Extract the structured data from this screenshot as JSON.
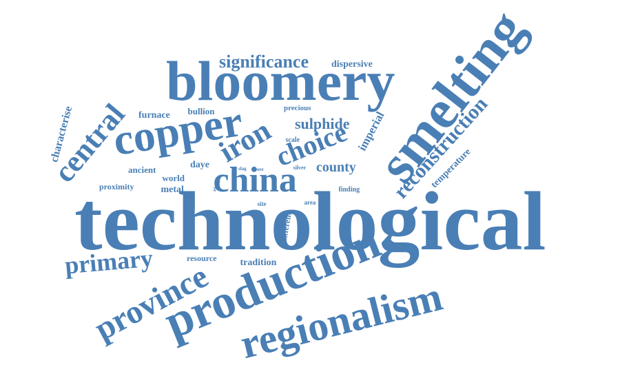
{
  "color": "#4a7fb5",
  "words": [
    {
      "text": "technological",
      "weight": 1.0
    },
    {
      "text": "smelting",
      "weight": 0.72
    },
    {
      "text": "production",
      "weight": 0.7
    },
    {
      "text": "bloomery",
      "weight": 0.68
    },
    {
      "text": "regionalism",
      "weight": 0.6
    },
    {
      "text": "province",
      "weight": 0.52
    },
    {
      "text": "copper",
      "weight": 0.55
    },
    {
      "text": "china",
      "weight": 0.48
    },
    {
      "text": "central",
      "weight": 0.4
    },
    {
      "text": "iron",
      "weight": 0.4
    },
    {
      "text": "choice",
      "weight": 0.38
    },
    {
      "text": "primary",
      "weight": 0.32
    },
    {
      "text": "reconstruction",
      "weight": 0.3
    },
    {
      "text": "significance",
      "weight": 0.26
    },
    {
      "text": "sulphide",
      "weight": 0.2
    },
    {
      "text": "county",
      "weight": 0.2
    },
    {
      "text": "imperial",
      "weight": 0.16
    },
    {
      "text": "characterise",
      "weight": 0.15
    },
    {
      "text": "temperature",
      "weight": 0.13
    },
    {
      "text": "dispersive",
      "weight": 0.13
    },
    {
      "text": "furnace",
      "weight": 0.13
    },
    {
      "text": "bullion",
      "weight": 0.12
    },
    {
      "text": "ancient",
      "weight": 0.12
    },
    {
      "text": "daye",
      "weight": 0.12
    },
    {
      "text": "world",
      "weight": 0.12
    },
    {
      "text": "metal",
      "weight": 0.12
    },
    {
      "text": "proximity",
      "weight": 0.11
    },
    {
      "text": "tradition",
      "weight": 0.12
    },
    {
      "text": "resource",
      "weight": 0.1
    },
    {
      "text": "precious",
      "weight": 0.09
    },
    {
      "text": "scale",
      "weight": 0.08
    },
    {
      "text": "different",
      "weight": 0.08
    },
    {
      "text": "finding",
      "weight": 0.08
    },
    {
      "text": "site",
      "weight": 0.07
    },
    {
      "text": "area",
      "weight": 0.07
    },
    {
      "text": "silver",
      "weight": 0.06
    },
    {
      "text": "eight",
      "weight": 0.05
    },
    {
      "text": "slag",
      "weight": 0.04
    },
    {
      "text": "ore",
      "weight": 0.04
    }
  ]
}
